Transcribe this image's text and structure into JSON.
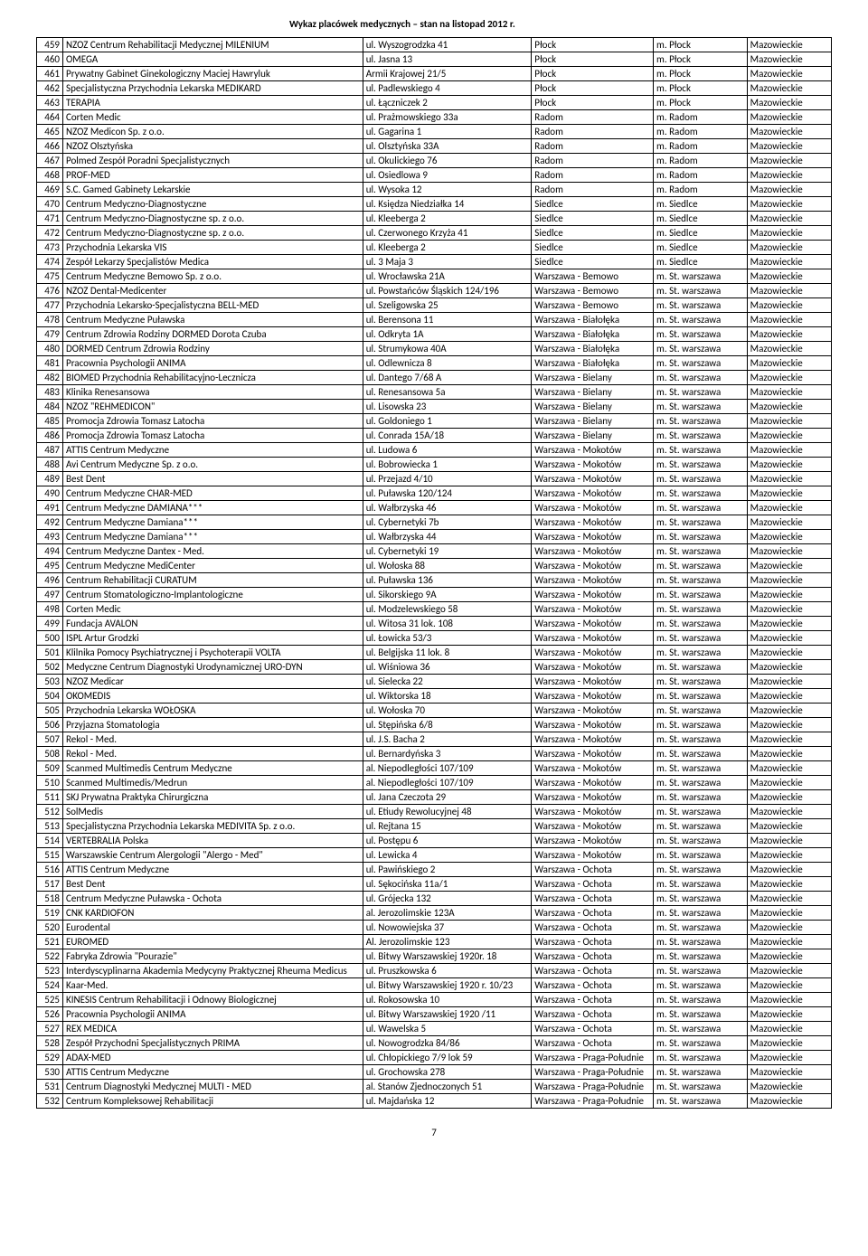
{
  "header": "Wykaz placówek medycznych – stan na listopad 2012 r.",
  "pageNumber": "7",
  "rows": [
    {
      "n": "459",
      "name": "NZOZ Centrum Rehabilitacji Medycznej MILENIUM",
      "addr": "ul. Wyszogrodzka 41",
      "city": "Płock",
      "district": "m. Płock",
      "region": "Mazowieckie"
    },
    {
      "n": "460",
      "name": "OMEGA",
      "addr": "ul. Jasna 13",
      "city": "Płock",
      "district": "m. Płock",
      "region": "Mazowieckie"
    },
    {
      "n": "461",
      "name": "Prywatny Gabinet Ginekologiczny Maciej Hawryluk",
      "addr": "Armii Krajowej 21/5",
      "city": "Płock",
      "district": "m. Płock",
      "region": "Mazowieckie"
    },
    {
      "n": "462",
      "name": "Specjalistyczna Przychodnia Lekarska MEDIKARD",
      "addr": "ul. Padlewskiego 4",
      "city": "Płock",
      "district": "m. Płock",
      "region": "Mazowieckie"
    },
    {
      "n": "463",
      "name": "TERAPIA",
      "addr": "ul. Łączniczek 2",
      "city": "Płock",
      "district": "m. Płock",
      "region": "Mazowieckie"
    },
    {
      "n": "464",
      "name": "Corten Medic",
      "addr": "ul. Prażmowskiego 33a",
      "city": "Radom",
      "district": "m. Radom",
      "region": "Mazowieckie"
    },
    {
      "n": "465",
      "name": "NZOZ Medicon Sp. z o.o.",
      "addr": "ul. Gagarina 1",
      "city": "Radom",
      "district": "m. Radom",
      "region": "Mazowieckie"
    },
    {
      "n": "466",
      "name": "NZOZ Olsztyńska",
      "addr": "ul. Olsztyńska 33A",
      "city": "Radom",
      "district": "m. Radom",
      "region": "Mazowieckie"
    },
    {
      "n": "467",
      "name": "Polmed Zespół Poradni Specjalistycznych",
      "addr": "ul. Okulickiego 76",
      "city": "Radom",
      "district": "m. Radom",
      "region": "Mazowieckie"
    },
    {
      "n": "468",
      "name": "PROF-MED",
      "addr": "ul. Osiedlowa 9",
      "city": "Radom",
      "district": "m. Radom",
      "region": "Mazowieckie"
    },
    {
      "n": "469",
      "name": "S.C. Gamed Gabinety Lekarskie",
      "addr": "ul. Wysoka 12",
      "city": "Radom",
      "district": "m. Radom",
      "region": "Mazowieckie"
    },
    {
      "n": "470",
      "name": "Centrum Medyczno-Diagnostyczne",
      "addr": "ul. Księdza Niedziałka 14",
      "city": "Siedlce",
      "district": "m. Siedlce",
      "region": "Mazowieckie"
    },
    {
      "n": "471",
      "name": "Centrum Medyczno-Diagnostyczne sp. z o.o.",
      "addr": "ul. Kleeberga 2",
      "city": "Siedlce",
      "district": "m. Siedlce",
      "region": "Mazowieckie"
    },
    {
      "n": "472",
      "name": "Centrum Medyczno-Diagnostyczne sp. z o.o.",
      "addr": "ul. Czerwonego Krzyża 41",
      "city": "Siedlce",
      "district": "m. Siedlce",
      "region": "Mazowieckie"
    },
    {
      "n": "473",
      "name": "Przychodnia Lekarska VIS",
      "addr": "ul. Kleeberga 2",
      "city": "Siedlce",
      "district": "m. Siedlce",
      "region": "Mazowieckie"
    },
    {
      "n": "474",
      "name": "Zespół Lekarzy Specjalistów Medica",
      "addr": "ul. 3 Maja 3",
      "city": "Siedlce",
      "district": "m. Siedlce",
      "region": "Mazowieckie"
    },
    {
      "n": "475",
      "name": "Centrum Medyczne Bemowo Sp. z o.o.",
      "addr": "ul. Wrocławska 21A",
      "city": "Warszawa - Bemowo",
      "district": "m. St. warszawa",
      "region": "Mazowieckie"
    },
    {
      "n": "476",
      "name": "NZOZ Dental-Medicenter",
      "addr": "ul. Powstańców Śląskich 124/196",
      "city": "Warszawa - Bemowo",
      "district": "m. St. warszawa",
      "region": "Mazowieckie"
    },
    {
      "n": "477",
      "name": "Przychodnia Lekarsko-Specjalistyczna BELL-MED",
      "addr": "ul. Szeligowska 25",
      "city": "Warszawa - Bemowo",
      "district": "m. St. warszawa",
      "region": "Mazowieckie"
    },
    {
      "n": "478",
      "name": "Centrum Medyczne Puławska",
      "addr": "ul. Berensona 11",
      "city": "Warszawa - Białołęka",
      "district": "m. St. warszawa",
      "region": "Mazowieckie"
    },
    {
      "n": "479",
      "name": "Centrum Zdrowia Rodziny DORMED Dorota Czuba",
      "addr": "ul. Odkryta 1A",
      "city": "Warszawa - Białołęka",
      "district": "m. St. warszawa",
      "region": "Mazowieckie"
    },
    {
      "n": "480",
      "name": "DORMED Centrum Zdrowia Rodziny",
      "addr": "ul. Strumykowa 40A",
      "city": "Warszawa - Białołęka",
      "district": "m. St. warszawa",
      "region": "Mazowieckie"
    },
    {
      "n": "481",
      "name": "Pracownia Psychologii ANIMA",
      "addr": "ul. Odlewnicza 8",
      "city": "Warszawa - Białołęka",
      "district": "m. St. warszawa",
      "region": "Mazowieckie"
    },
    {
      "n": "482",
      "name": "BIOMED Przychodnia Rehabilitacyjno-Lecznicza",
      "addr": "ul. Dantego 7/68 A",
      "city": "Warszawa - Bielany",
      "district": "m. St. warszawa",
      "region": "Mazowieckie"
    },
    {
      "n": "483",
      "name": "Klinika Renesansowa",
      "addr": "ul. Renesansowa 5a",
      "city": "Warszawa - Bielany",
      "district": "m. St. warszawa",
      "region": "Mazowieckie"
    },
    {
      "n": "484",
      "name": "NZOZ \"REHMEDICON\"",
      "addr": "ul. Lisowska 23",
      "city": "Warszawa - Bielany",
      "district": "m. St. warszawa",
      "region": "Mazowieckie"
    },
    {
      "n": "485",
      "name": "Promocja Zdrowia Tomasz Latocha",
      "addr": "ul. Goldoniego 1",
      "city": "Warszawa - Bielany",
      "district": "m. St. warszawa",
      "region": "Mazowieckie"
    },
    {
      "n": "486",
      "name": "Promocja Zdrowia Tomasz Latocha",
      "addr": "ul. Conrada 15A/18",
      "city": "Warszawa - Bielany",
      "district": "m. St. warszawa",
      "region": "Mazowieckie"
    },
    {
      "n": "487",
      "name": "ATTIS Centrum Medyczne",
      "addr": "ul. Ludowa 6",
      "city": "Warszawa - Mokotów",
      "district": "m. St. warszawa",
      "region": "Mazowieckie"
    },
    {
      "n": "488",
      "name": "Avi Centrum Medyczne Sp. z o.o.",
      "addr": "ul. Bobrowiecka 1",
      "city": "Warszawa - Mokotów",
      "district": "m. St. warszawa",
      "region": "Mazowieckie"
    },
    {
      "n": "489",
      "name": "Best Dent",
      "addr": "ul. Przejazd 4/10",
      "city": "Warszawa - Mokotów",
      "district": "m. St. warszawa",
      "region": "Mazowieckie"
    },
    {
      "n": "490",
      "name": "Centrum Medyczne CHAR-MED",
      "addr": "ul. Puławska 120/124",
      "city": "Warszawa - Mokotów",
      "district": "m. St. warszawa",
      "region": "Mazowieckie"
    },
    {
      "n": "491",
      "name": "Centrum Medyczne DAMIANA***",
      "addr": "ul. Wałbrzyska 46",
      "city": "Warszawa - Mokotów",
      "district": "m. St. warszawa",
      "region": "Mazowieckie"
    },
    {
      "n": "492",
      "name": "Centrum Medyczne Damiana***",
      "addr": "ul. Cybernetyki 7b",
      "city": "Warszawa - Mokotów",
      "district": "m. St. warszawa",
      "region": "Mazowieckie"
    },
    {
      "n": "493",
      "name": "Centrum Medyczne Damiana***",
      "addr": "ul. Wałbrzyska 44",
      "city": "Warszawa - Mokotów",
      "district": "m. St. warszawa",
      "region": "Mazowieckie"
    },
    {
      "n": "494",
      "name": "Centrum Medyczne Dantex - Med.",
      "addr": "ul. Cybernetyki 19",
      "city": "Warszawa - Mokotów",
      "district": "m. St. warszawa",
      "region": "Mazowieckie"
    },
    {
      "n": "495",
      "name": "Centrum Medyczne MediCenter",
      "addr": "ul. Wołoska 88",
      "city": "Warszawa - Mokotów",
      "district": "m. St. warszawa",
      "region": "Mazowieckie"
    },
    {
      "n": "496",
      "name": "Centrum Rehabilitacji CURATUM",
      "addr": "ul. Puławska 136",
      "city": "Warszawa - Mokotów",
      "district": "m. St. warszawa",
      "region": "Mazowieckie"
    },
    {
      "n": "497",
      "name": "Centrum Stomatologiczno-Implantologiczne",
      "addr": "ul. Sikorskiego 9A",
      "city": "Warszawa - Mokotów",
      "district": "m. St. warszawa",
      "region": "Mazowieckie"
    },
    {
      "n": "498",
      "name": "Corten Medic",
      "addr": "ul. Modzelewskiego 58",
      "city": "Warszawa - Mokotów",
      "district": "m. St. warszawa",
      "region": "Mazowieckie"
    },
    {
      "n": "499",
      "name": "Fundacja AVALON",
      "addr": "ul. Witosa 31 lok. 108",
      "city": "Warszawa - Mokotów",
      "district": "m. St. warszawa",
      "region": "Mazowieckie"
    },
    {
      "n": "500",
      "name": "ISPL Artur Grodzki",
      "addr": "ul. Łowicka 53/3",
      "city": "Warszawa - Mokotów",
      "district": "m. St. warszawa",
      "region": "Mazowieckie"
    },
    {
      "n": "501",
      "name": "Klilnika Pomocy Psychiatrycznej i Psychoterapii VOLTA",
      "addr": "ul. Belgijska 11 lok. 8",
      "city": "Warszawa - Mokotów",
      "district": "m. St. warszawa",
      "region": "Mazowieckie"
    },
    {
      "n": "502",
      "name": "Medyczne Centrum Diagnostyki Urodynamicznej URO-DYN",
      "addr": "ul. Wiśniowa 36",
      "city": "Warszawa - Mokotów",
      "district": "m. St. warszawa",
      "region": "Mazowieckie"
    },
    {
      "n": "503",
      "name": "NZOZ Medicar",
      "addr": "ul. Sielecka 22",
      "city": "Warszawa - Mokotów",
      "district": "m. St. warszawa",
      "region": "Mazowieckie"
    },
    {
      "n": "504",
      "name": "OKOMEDIS",
      "addr": "ul. Wiktorska 18",
      "city": "Warszawa - Mokotów",
      "district": "m. St. warszawa",
      "region": "Mazowieckie"
    },
    {
      "n": "505",
      "name": "Przychodnia Lekarska WOŁOSKA",
      "addr": "ul. Wołoska 70",
      "city": "Warszawa - Mokotów",
      "district": "m. St. warszawa",
      "region": "Mazowieckie"
    },
    {
      "n": "506",
      "name": "Przyjazna Stomatologia",
      "addr": "ul. Stępińska 6/8",
      "city": "Warszawa - Mokotów",
      "district": "m. St. warszawa",
      "region": "Mazowieckie"
    },
    {
      "n": "507",
      "name": "Rekol - Med.",
      "addr": "ul. J.S. Bacha 2",
      "city": "Warszawa - Mokotów",
      "district": "m. St. warszawa",
      "region": "Mazowieckie"
    },
    {
      "n": "508",
      "name": "Rekol - Med.",
      "addr": "ul. Bernardyńska 3",
      "city": "Warszawa - Mokotów",
      "district": "m. St. warszawa",
      "region": "Mazowieckie"
    },
    {
      "n": "509",
      "name": "Scanmed Multimedis Centrum Medyczne",
      "addr": "al. Niepodległości 107/109",
      "city": "Warszawa - Mokotów",
      "district": "m. St. warszawa",
      "region": "Mazowieckie"
    },
    {
      "n": "510",
      "name": "Scanmed Multimedis/Medrun",
      "addr": "al. Niepodległości 107/109",
      "city": "Warszawa - Mokotów",
      "district": "m. St. warszawa",
      "region": "Mazowieckie"
    },
    {
      "n": "511",
      "name": "SKJ Prywatna Praktyka Chirurgiczna",
      "addr": "ul. Jana Czeczota 29",
      "city": "Warszawa - Mokotów",
      "district": "m. St. warszawa",
      "region": "Mazowieckie"
    },
    {
      "n": "512",
      "name": "SolMedis",
      "addr": "ul. Etiudy Rewolucyjnej 48",
      "city": "Warszawa - Mokotów",
      "district": "m. St. warszawa",
      "region": "Mazowieckie"
    },
    {
      "n": "513",
      "name": "Specjalistyczna Przychodnia Lekarska MEDIVITA Sp. z o.o.",
      "addr": "ul. Rejtana 15",
      "city": "Warszawa - Mokotów",
      "district": "m. St. warszawa",
      "region": "Mazowieckie"
    },
    {
      "n": "514",
      "name": "VERTEBRALIA Polska",
      "addr": "ul. Postępu 6",
      "city": "Warszawa - Mokotów",
      "district": "m. St. warszawa",
      "region": "Mazowieckie"
    },
    {
      "n": "515",
      "name": "Warszawskie Centrum Alergologii \"Alergo - Med\"",
      "addr": "ul. Lewicka 4",
      "city": "Warszawa - Mokotów",
      "district": "m. St. warszawa",
      "region": "Mazowieckie"
    },
    {
      "n": "516",
      "name": "ATTIS Centrum Medyczne",
      "addr": "ul. Pawińskiego 2",
      "city": "Warszawa - Ochota",
      "district": "m. St. warszawa",
      "region": "Mazowieckie"
    },
    {
      "n": "517",
      "name": "Best Dent",
      "addr": "ul. Sękocińska 11a/1",
      "city": "Warszawa - Ochota",
      "district": "m. St. warszawa",
      "region": "Mazowieckie"
    },
    {
      "n": "518",
      "name": "Centrum Medyczne Puławska - Ochota",
      "addr": "ul. Grójecka 132",
      "city": "Warszawa - Ochota",
      "district": "m. St. warszawa",
      "region": "Mazowieckie"
    },
    {
      "n": "519",
      "name": "CNK KARDIOFON",
      "addr": "al. Jerozolimskie 123A",
      "city": "Warszawa - Ochota",
      "district": "m. St. warszawa",
      "region": "Mazowieckie"
    },
    {
      "n": "520",
      "name": "Eurodental",
      "addr": "ul. Nowowiejska 37",
      "city": "Warszawa - Ochota",
      "district": "m. St. warszawa",
      "region": "Mazowieckie"
    },
    {
      "n": "521",
      "name": "EUROMED",
      "addr": "Al. Jerozolimskie 123",
      "city": "Warszawa - Ochota",
      "district": "m. St. warszawa",
      "region": "Mazowieckie"
    },
    {
      "n": "522",
      "name": "Fabryka Zdrowia \"Pourazie\"",
      "addr": "ul. Bitwy Warszawskiej 1920r. 18",
      "city": "Warszawa - Ochota",
      "district": "m. St. warszawa",
      "region": "Mazowieckie"
    },
    {
      "n": "523",
      "name": "Interdyscyplinarna Akademia Medycyny Praktycznej Rheuma Medicus",
      "addr": "ul. Pruszkowska 6",
      "city": "Warszawa - Ochota",
      "district": "m. St. warszawa",
      "region": "Mazowieckie"
    },
    {
      "n": "524",
      "name": "Kaar-Med.",
      "addr": "ul. Bitwy Warszawskiej 1920 r. 10/23",
      "city": "Warszawa - Ochota",
      "district": "m. St. warszawa",
      "region": "Mazowieckie"
    },
    {
      "n": "525",
      "name": "KINESIS Centrum Rehabilitacji i Odnowy Biologicznej",
      "addr": "ul. Rokosowska 10",
      "city": "Warszawa - Ochota",
      "district": "m. St. warszawa",
      "region": "Mazowieckie"
    },
    {
      "n": "526",
      "name": "Pracownia Psychologii ANIMA",
      "addr": "ul. Bitwy Warszawskiej 1920 /11",
      "city": "Warszawa - Ochota",
      "district": "m. St. warszawa",
      "region": "Mazowieckie"
    },
    {
      "n": "527",
      "name": "REX MEDICA",
      "addr": "ul. Wawelska 5",
      "city": "Warszawa - Ochota",
      "district": "m. St. warszawa",
      "region": "Mazowieckie"
    },
    {
      "n": "528",
      "name": "Zespół Przychodni Specjalistycznych PRIMA",
      "addr": "ul. Nowogrodzka 84/86",
      "city": "Warszawa - Ochota",
      "district": "m. St. warszawa",
      "region": "Mazowieckie"
    },
    {
      "n": "529",
      "name": "ADAX-MED",
      "addr": "ul. Chłopickiego 7/9 lok 59",
      "city": "Warszawa - Praga-Południe",
      "district": "m. St. warszawa",
      "region": "Mazowieckie"
    },
    {
      "n": "530",
      "name": "ATTIS Centrum Medyczne",
      "addr": "ul. Grochowska 278",
      "city": "Warszawa - Praga-Południe",
      "district": "m. St. warszawa",
      "region": "Mazowieckie"
    },
    {
      "n": "531",
      "name": "Centrum Diagnostyki Medycznej MULTI - MED",
      "addr": "al. Stanów Zjednoczonych 51",
      "city": "Warszawa - Praga-Południe",
      "district": "m. St. warszawa",
      "region": "Mazowieckie"
    },
    {
      "n": "532",
      "name": "Centrum Kompleksowej Rehabilitacji",
      "addr": "ul. Majdańska 12",
      "city": "Warszawa - Praga-Południe",
      "district": "m. St. warszawa",
      "region": "Mazowieckie"
    }
  ]
}
